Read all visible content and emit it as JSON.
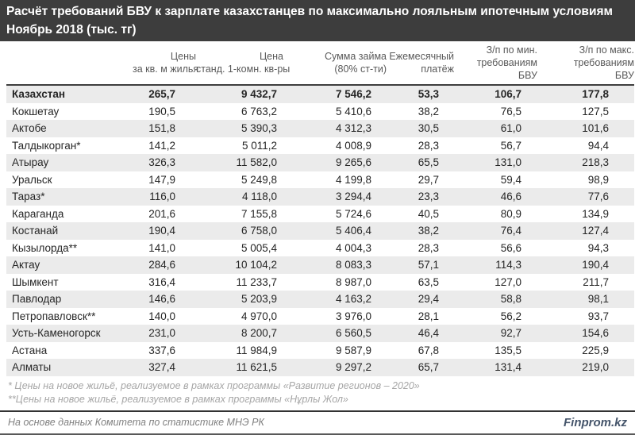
{
  "title": {
    "line1": "Расчёт требований БВУ к зарплате казахстанцев по максимально лояльным ипотечным условиям",
    "line2": "Ноябрь 2018 (тыс. тг)"
  },
  "chart_data": {
    "type": "table",
    "title": "Расчёт требований БВУ к зарплате казахстанцев по максимально лояльным ипотечным условиям",
    "subtitle": "Ноябрь 2018 (тыс. тг)",
    "units": "тыс. тг",
    "columns": [
      {
        "id": "region",
        "lines": []
      },
      {
        "id": "price-per-sqm",
        "lines": [
          "Цены",
          "за кв. м жилья"
        ]
      },
      {
        "id": "price-std-1room",
        "lines": [
          "Цена",
          "станд. 1-комн. кв-ры"
        ]
      },
      {
        "id": "loan-amount",
        "lines": [
          "Сумма займа",
          "(80% ст-ти)"
        ]
      },
      {
        "id": "monthly-payment",
        "lines": [
          "Ежемесячный",
          "платёж"
        ]
      },
      {
        "id": "salary-min-req",
        "lines": [
          "З/п по мин.",
          "требованиям",
          "БВУ"
        ]
      },
      {
        "id": "salary-max-req",
        "lines": [
          "З/п по макс.",
          "требованиям",
          "БВУ"
        ]
      }
    ],
    "rows": [
      {
        "region": "Казахстан",
        "bold": true,
        "values": [
          "265,7",
          "9 432,7",
          "7 546,2",
          "53,3",
          "106,7",
          "177,8"
        ]
      },
      {
        "region": "Кокшетау",
        "bold": false,
        "values": [
          "190,5",
          "6 763,2",
          "5 410,6",
          "38,2",
          "76,5",
          "127,5"
        ]
      },
      {
        "region": "Актобе",
        "bold": false,
        "values": [
          "151,8",
          "5 390,3",
          "4 312,3",
          "30,5",
          "61,0",
          "101,6"
        ]
      },
      {
        "region": "Талдыкорган*",
        "bold": false,
        "values": [
          "141,2",
          "5 011,2",
          "4 008,9",
          "28,3",
          "56,7",
          "94,4"
        ]
      },
      {
        "region": "Атырау",
        "bold": false,
        "values": [
          "326,3",
          "11 582,0",
          "9 265,6",
          "65,5",
          "131,0",
          "218,3"
        ]
      },
      {
        "region": "Уральск",
        "bold": false,
        "values": [
          "147,9",
          "5 249,8",
          "4 199,8",
          "29,7",
          "59,4",
          "98,9"
        ]
      },
      {
        "region": "Тараз*",
        "bold": false,
        "values": [
          "116,0",
          "4 118,0",
          "3 294,4",
          "23,3",
          "46,6",
          "77,6"
        ]
      },
      {
        "region": "Караганда",
        "bold": false,
        "values": [
          "201,6",
          "7 155,8",
          "5 724,6",
          "40,5",
          "80,9",
          "134,9"
        ]
      },
      {
        "region": "Костанай",
        "bold": false,
        "values": [
          "190,4",
          "6 758,0",
          "5 406,4",
          "38,2",
          "76,4",
          "127,4"
        ]
      },
      {
        "region": "Кызылорда**",
        "bold": false,
        "values": [
          "141,0",
          "5 005,4",
          "4 004,3",
          "28,3",
          "56,6",
          "94,3"
        ]
      },
      {
        "region": "Актау",
        "bold": false,
        "values": [
          "284,6",
          "10 104,2",
          "8 083,3",
          "57,1",
          "114,3",
          "190,4"
        ]
      },
      {
        "region": "Шымкент",
        "bold": false,
        "values": [
          "316,4",
          "11 233,7",
          "8 987,0",
          "63,5",
          "127,0",
          "211,7"
        ]
      },
      {
        "region": "Павлодар",
        "bold": false,
        "values": [
          "146,6",
          "5 203,9",
          "4 163,2",
          "29,4",
          "58,8",
          "98,1"
        ]
      },
      {
        "region": "Петропавловск**",
        "bold": false,
        "values": [
          "140,0",
          "4 970,0",
          "3 976,0",
          "28,1",
          "56,2",
          "93,7"
        ]
      },
      {
        "region": "Усть-Каменогорск",
        "bold": false,
        "values": [
          "231,0",
          "8 200,7",
          "6 560,5",
          "46,4",
          "92,7",
          "154,6"
        ]
      },
      {
        "region": "Астана",
        "bold": false,
        "values": [
          "337,6",
          "11 984,9",
          "9 587,9",
          "67,8",
          "135,5",
          "225,9"
        ]
      },
      {
        "region": "Алматы",
        "bold": false,
        "values": [
          "327,4",
          "11 621,5",
          "9 297,2",
          "65,7",
          "131,4",
          "219,0"
        ]
      }
    ]
  },
  "footnotes": [
    "* Цены на новое жильё, реализуемое в рамках программы «Развитие регионов – 2020»",
    "**Цены на новое жильё, реализуемое в рамках программы «Нұрлы Жол»"
  ],
  "footer": {
    "source": "На основе данных Комитета по статистике МНЭ РК",
    "brand": "Finprom.kz"
  },
  "colors": {
    "title_bar_bg": "#3d3d3d",
    "title_text": "#ffffff",
    "header_text": "#595959",
    "body_text": "#262626",
    "row_stripe": "#ebebeb",
    "footnote_text": "#a6a6a6",
    "source_text": "#808080",
    "brand_text": "#44546a",
    "rule_dark": "#333333"
  }
}
